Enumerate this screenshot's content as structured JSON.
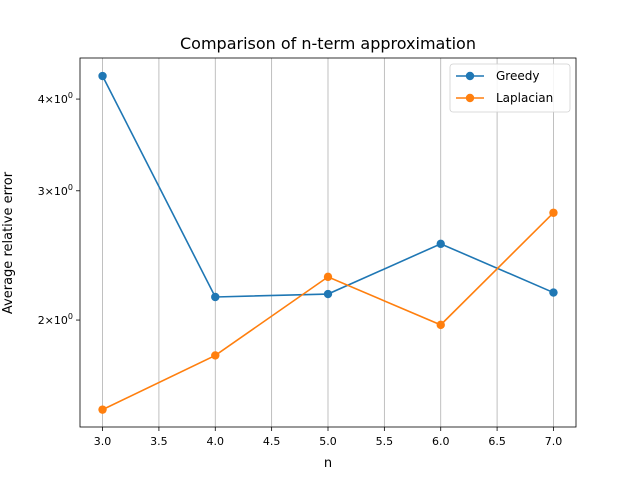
{
  "chart_data": {
    "type": "line",
    "title": "Comparison of n-term approximation",
    "xlabel": "n",
    "ylabel": "Average relative error",
    "yscale": "log",
    "xlim": [
      2.8,
      7.2
    ],
    "ylim": [
      1.43,
      4.55
    ],
    "grid": "x-only",
    "legend_position": "top-right",
    "x_ticks": [
      "3.0",
      "3.5",
      "4.0",
      "4.5",
      "5.0",
      "5.5",
      "6.0",
      "6.5",
      "7.0"
    ],
    "y_ticks": [
      {
        "value": 2,
        "base": "2",
        "exp": "0"
      },
      {
        "value": 3,
        "base": "3",
        "exp": "0"
      },
      {
        "value": 4,
        "base": "4",
        "exp": "0"
      }
    ],
    "times_sign": "×10",
    "x": [
      3,
      4,
      5,
      6,
      7
    ],
    "series": [
      {
        "name": "Greedy",
        "color": "#1f77b4",
        "values": [
          4.3,
          2.15,
          2.17,
          2.54,
          2.18
        ]
      },
      {
        "name": "Laplacian",
        "color": "#ff7f0e",
        "values": [
          1.51,
          1.79,
          2.29,
          1.97,
          2.8
        ]
      }
    ]
  }
}
